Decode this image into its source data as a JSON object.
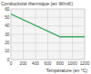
{
  "chart_data": {
    "type": "line",
    "title": "Conductivité thermique (en W/mK)",
    "x_label": "Température (en °C)",
    "x": [
      0,
      800,
      1200
    ],
    "values": [
      54,
      27,
      27
    ],
    "color": "#3aa85a",
    "xlim": [
      0,
      1200
    ],
    "xticks": [
      0,
      200,
      400,
      600,
      800,
      1000,
      1200
    ],
    "ylim": [
      0,
      60
    ],
    "yticks": [
      0,
      10,
      20,
      30,
      40,
      50,
      60
    ],
    "grid": true
  }
}
